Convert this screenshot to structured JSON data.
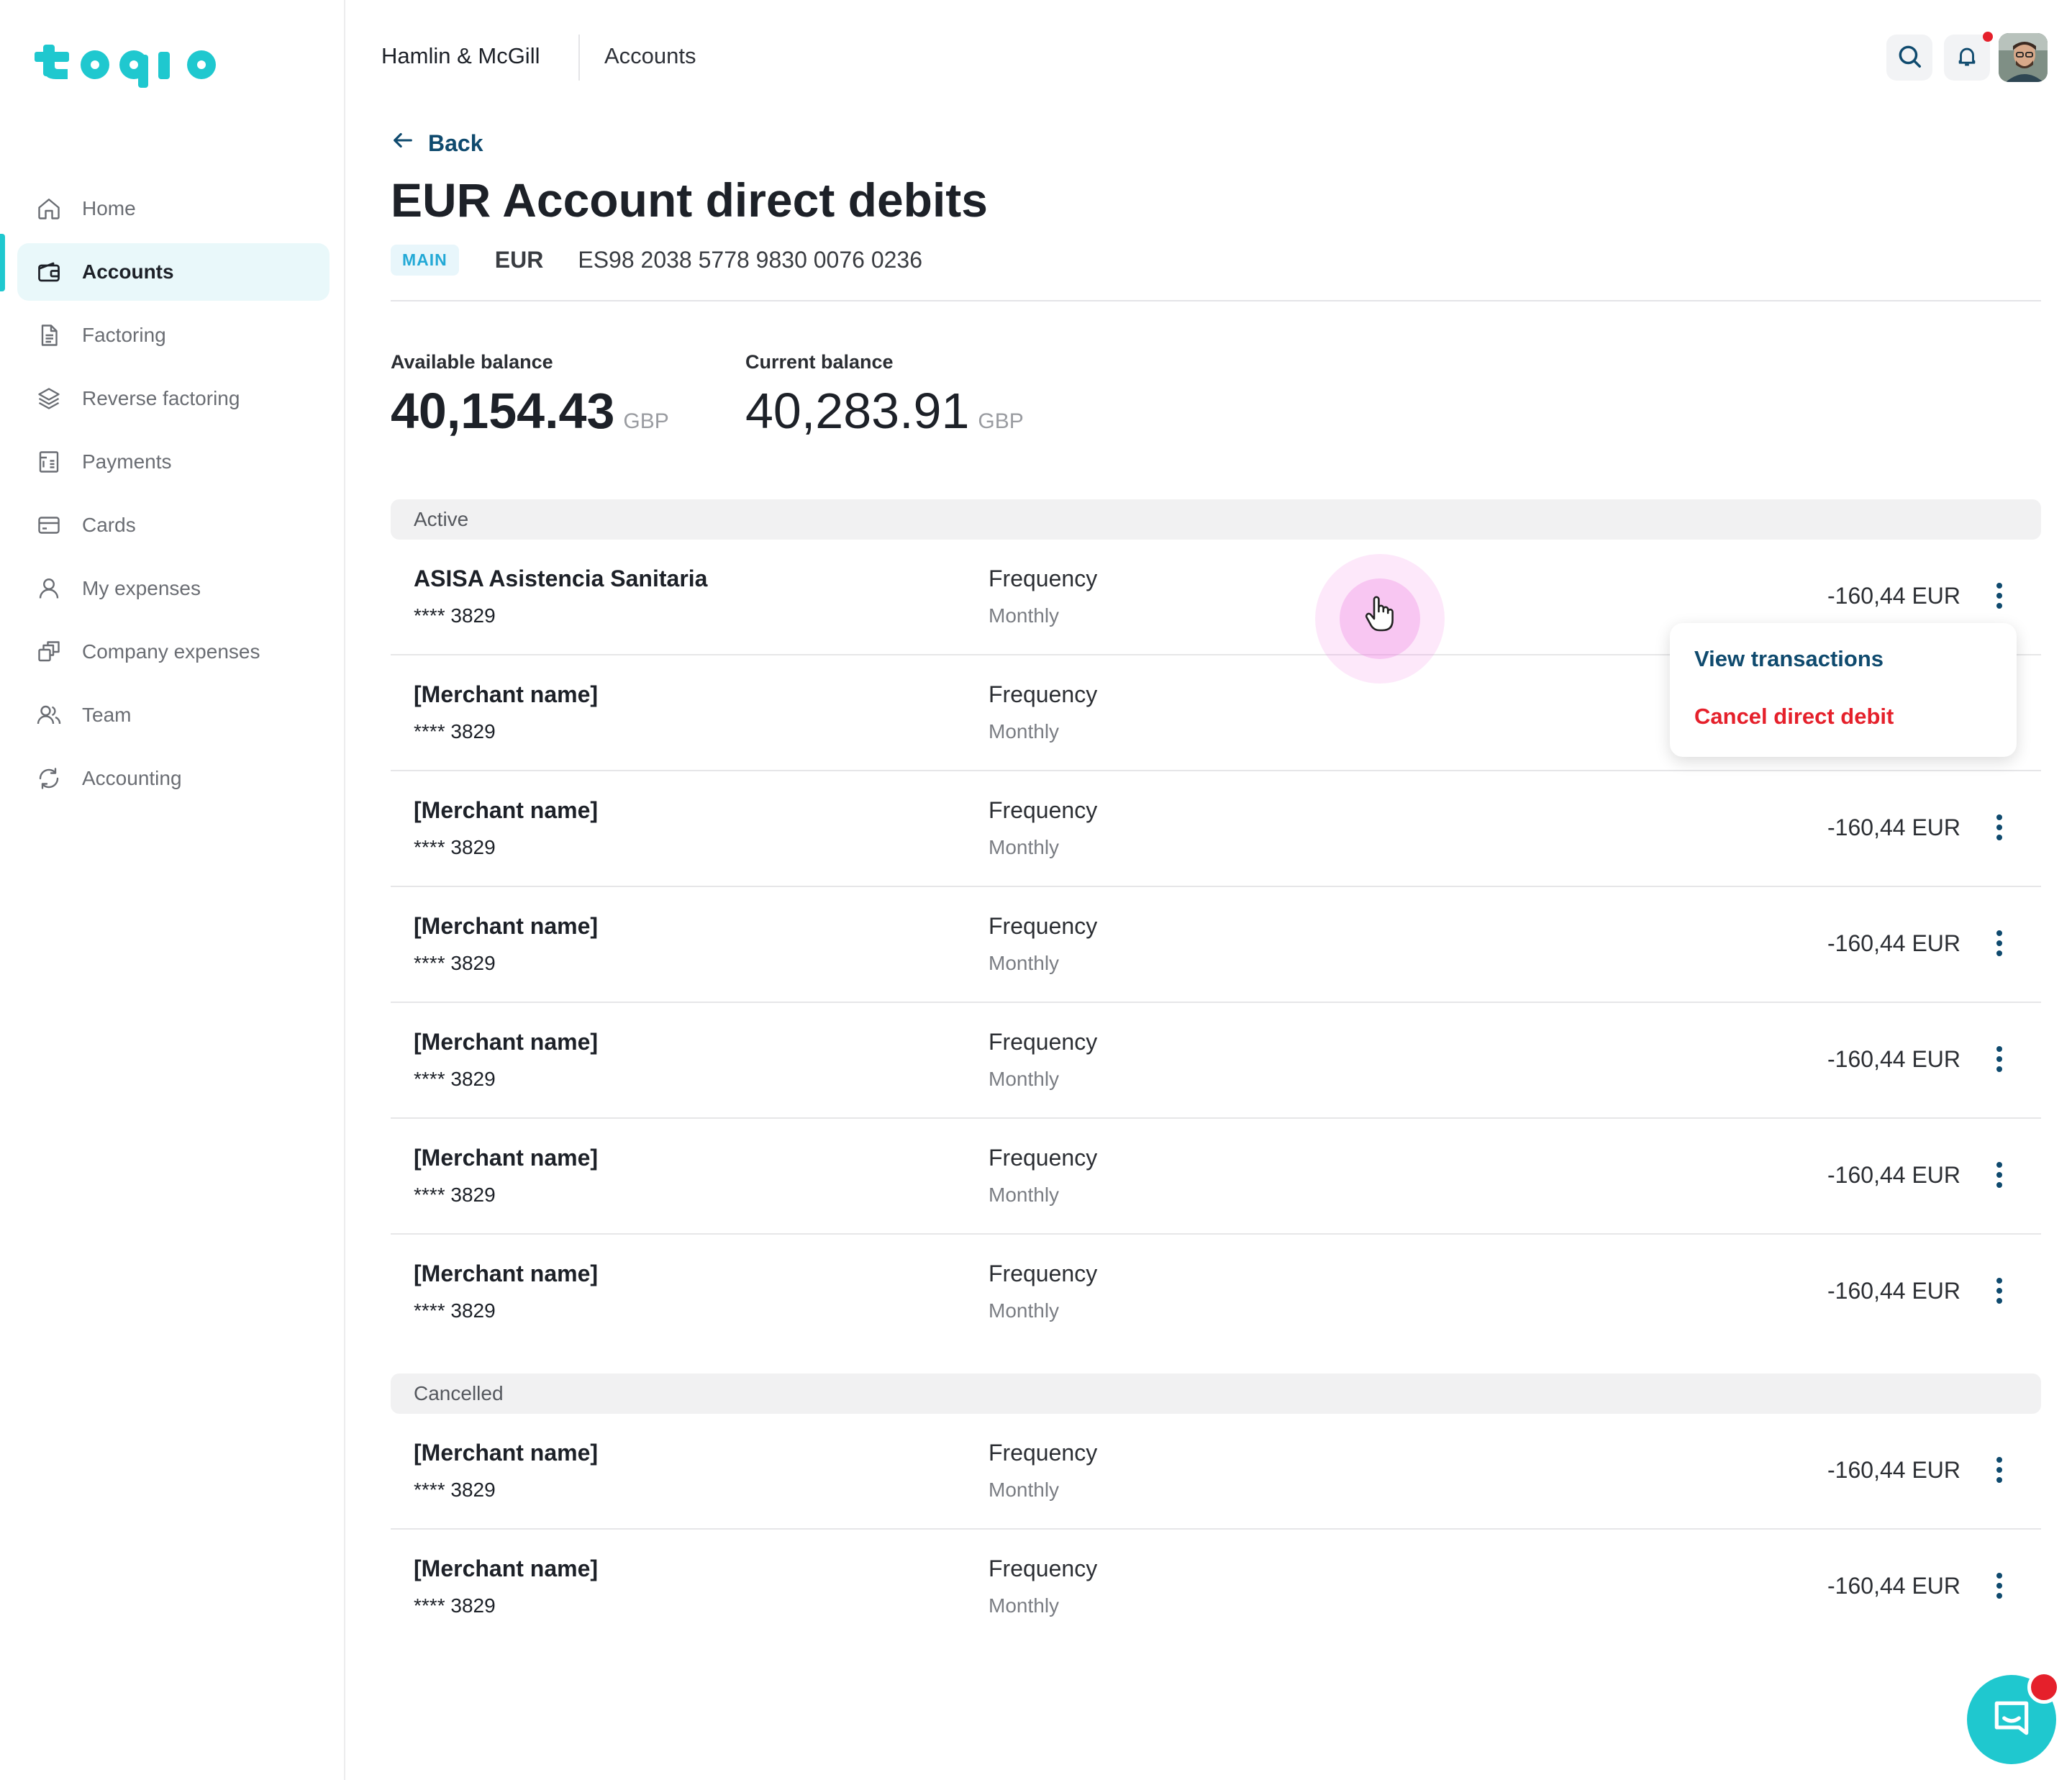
{
  "brand": {
    "logo_text": "toqio",
    "accent": "#1fc8cf"
  },
  "sidebar": {
    "items": [
      {
        "label": "Home",
        "icon": "home-icon",
        "active": false
      },
      {
        "label": "Accounts",
        "icon": "wallet-icon",
        "active": true
      },
      {
        "label": "Factoring",
        "icon": "document-icon",
        "active": false
      },
      {
        "label": "Reverse factoring",
        "icon": "layers-icon",
        "active": false
      },
      {
        "label": "Payments",
        "icon": "receipt-icon",
        "active": false
      },
      {
        "label": "Cards",
        "icon": "card-icon",
        "active": false
      },
      {
        "label": "My expenses",
        "icon": "user-icon",
        "active": false
      },
      {
        "label": "Company expenses",
        "icon": "copy-icon",
        "active": false
      },
      {
        "label": "Team",
        "icon": "team-icon",
        "active": false
      },
      {
        "label": "Accounting",
        "icon": "sync-icon",
        "active": false
      }
    ]
  },
  "header": {
    "company": "Hamlin & McGill",
    "section": "Accounts",
    "icons": [
      "search-icon",
      "bell-icon"
    ]
  },
  "page": {
    "back_label": "Back",
    "title": "EUR Account direct debits",
    "badge": "MAIN",
    "currency": "EUR",
    "iban": "ES98 2038 5778 9830 0076 0236"
  },
  "balances": {
    "available": {
      "label": "Available balance",
      "value": "40,154.43",
      "currency": "GBP"
    },
    "current": {
      "label": "Current balance",
      "value": "40,283.91",
      "currency": "GBP"
    }
  },
  "sections": {
    "active": {
      "label": "Active",
      "rows": [
        {
          "name": "ASISA Asistencia Sanitaria",
          "account": "**** 3829",
          "freq_label": "Frequency",
          "freq_value": "Monthly",
          "amount": "-160,44 EUR"
        },
        {
          "name": "[Merchant name]",
          "account": "**** 3829",
          "freq_label": "Frequency",
          "freq_value": "Monthly",
          "amount": ""
        },
        {
          "name": "[Merchant name]",
          "account": "**** 3829",
          "freq_label": "Frequency",
          "freq_value": "Monthly",
          "amount": "-160,44 EUR"
        },
        {
          "name": "[Merchant name]",
          "account": "**** 3829",
          "freq_label": "Frequency",
          "freq_value": "Monthly",
          "amount": "-160,44 EUR"
        },
        {
          "name": "[Merchant name]",
          "account": "**** 3829",
          "freq_label": "Frequency",
          "freq_value": "Monthly",
          "amount": "-160,44 EUR"
        },
        {
          "name": "[Merchant name]",
          "account": "**** 3829",
          "freq_label": "Frequency",
          "freq_value": "Monthly",
          "amount": "-160,44 EUR"
        },
        {
          "name": "[Merchant name]",
          "account": "**** 3829",
          "freq_label": "Frequency",
          "freq_value": "Monthly",
          "amount": "-160,44 EUR"
        }
      ]
    },
    "cancelled": {
      "label": "Cancelled",
      "rows": [
        {
          "name": "[Merchant name]",
          "account": "**** 3829",
          "freq_label": "Frequency",
          "freq_value": "Monthly",
          "amount": "-160,44 EUR"
        },
        {
          "name": "[Merchant name]",
          "account": "**** 3829",
          "freq_label": "Frequency",
          "freq_value": "Monthly",
          "amount": "-160,44 EUR"
        }
      ]
    }
  },
  "context_menu": {
    "view_label": "View transactions",
    "cancel_label": "Cancel direct debit",
    "view_color": "#0f4a6e",
    "cancel_color": "#e5202b"
  },
  "chat": {
    "icon": "chat-icon",
    "notification_color": "#e5202b"
  }
}
